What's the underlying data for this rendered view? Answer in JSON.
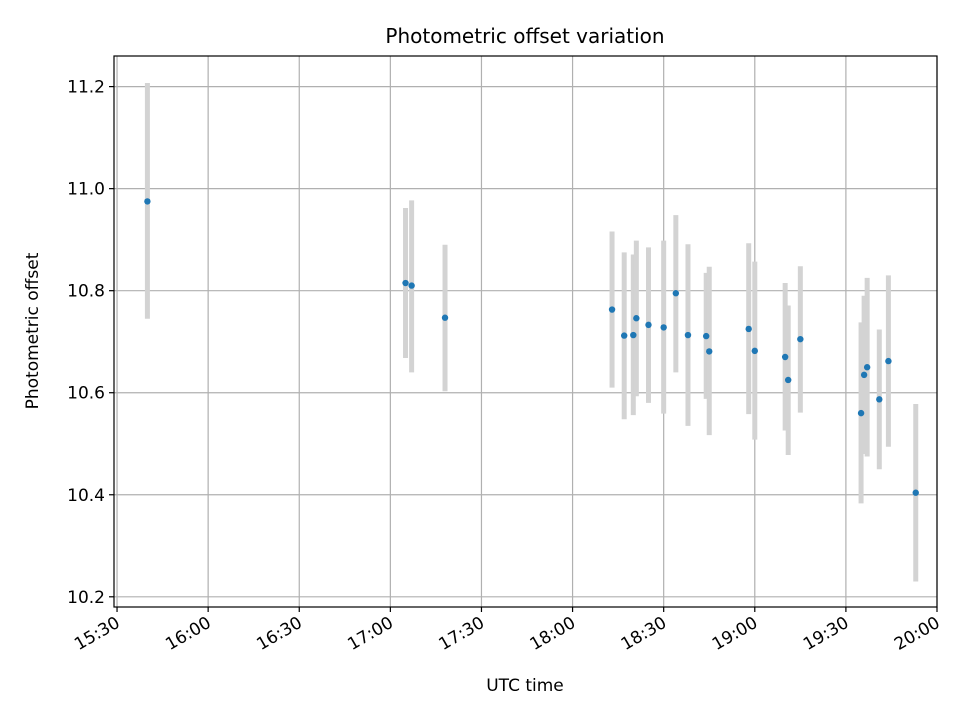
{
  "chart_data": {
    "type": "scatter",
    "title": "Photometric offset variation",
    "xlabel": "UTC time",
    "ylabel": "Photometric offset",
    "x_ticks": [
      "15:30",
      "16:00",
      "16:30",
      "17:00",
      "17:30",
      "18:00",
      "18:30",
      "19:00",
      "19:30",
      "20:00"
    ],
    "y_ticks": [
      "10.2",
      "10.4",
      "10.6",
      "10.8",
      "11.0",
      "11.2"
    ],
    "xlim": [
      "15:29",
      "20:00"
    ],
    "ylim": [
      10.18,
      11.26
    ],
    "grid": true,
    "colors": {
      "point": "#1f77b4",
      "errorbar": "#d3d3d3",
      "grid": "#b0b0b0"
    },
    "points": [
      {
        "x": "15:40",
        "y": 10.975,
        "err_low": 10.745,
        "err_high": 11.207
      },
      {
        "x": "17:05",
        "y": 10.815,
        "err_low": 10.668,
        "err_high": 10.962
      },
      {
        "x": "17:07",
        "y": 10.81,
        "err_low": 10.64,
        "err_high": 10.977
      },
      {
        "x": "17:18",
        "y": 10.747,
        "err_low": 10.603,
        "err_high": 10.89
      },
      {
        "x": "18:13",
        "y": 10.763,
        "err_low": 10.61,
        "err_high": 10.916
      },
      {
        "x": "18:17",
        "y": 10.712,
        "err_low": 10.548,
        "err_high": 10.875
      },
      {
        "x": "18:20",
        "y": 10.713,
        "err_low": 10.556,
        "err_high": 10.871
      },
      {
        "x": "18:21",
        "y": 10.746,
        "err_low": 10.593,
        "err_high": 10.898
      },
      {
        "x": "18:25",
        "y": 10.733,
        "err_low": 10.58,
        "err_high": 10.885
      },
      {
        "x": "18:30",
        "y": 10.728,
        "err_low": 10.559,
        "err_high": 10.898
      },
      {
        "x": "18:34",
        "y": 10.795,
        "err_low": 10.64,
        "err_high": 10.948
      },
      {
        "x": "18:38",
        "y": 10.713,
        "err_low": 10.535,
        "err_high": 10.891
      },
      {
        "x": "18:44",
        "y": 10.711,
        "err_low": 10.588,
        "err_high": 10.835
      },
      {
        "x": "18:45",
        "y": 10.681,
        "err_low": 10.517,
        "err_high": 10.847
      },
      {
        "x": "18:58",
        "y": 10.725,
        "err_low": 10.558,
        "err_high": 10.893
      },
      {
        "x": "19:00",
        "y": 10.682,
        "err_low": 10.508,
        "err_high": 10.857
      },
      {
        "x": "19:10",
        "y": 10.67,
        "err_low": 10.526,
        "err_high": 10.815
      },
      {
        "x": "19:11",
        "y": 10.625,
        "err_low": 10.478,
        "err_high": 10.771
      },
      {
        "x": "19:15",
        "y": 10.705,
        "err_low": 10.561,
        "err_high": 10.848
      },
      {
        "x": "19:35",
        "y": 10.56,
        "err_low": 10.383,
        "err_high": 10.738
      },
      {
        "x": "19:36",
        "y": 10.635,
        "err_low": 10.48,
        "err_high": 10.79
      },
      {
        "x": "19:37",
        "y": 10.65,
        "err_low": 10.475,
        "err_high": 10.825
      },
      {
        "x": "19:41",
        "y": 10.587,
        "err_low": 10.45,
        "err_high": 10.724
      },
      {
        "x": "19:44",
        "y": 10.662,
        "err_low": 10.494,
        "err_high": 10.83
      },
      {
        "x": "19:53",
        "y": 10.404,
        "err_low": 10.23,
        "err_high": 10.578
      }
    ]
  }
}
